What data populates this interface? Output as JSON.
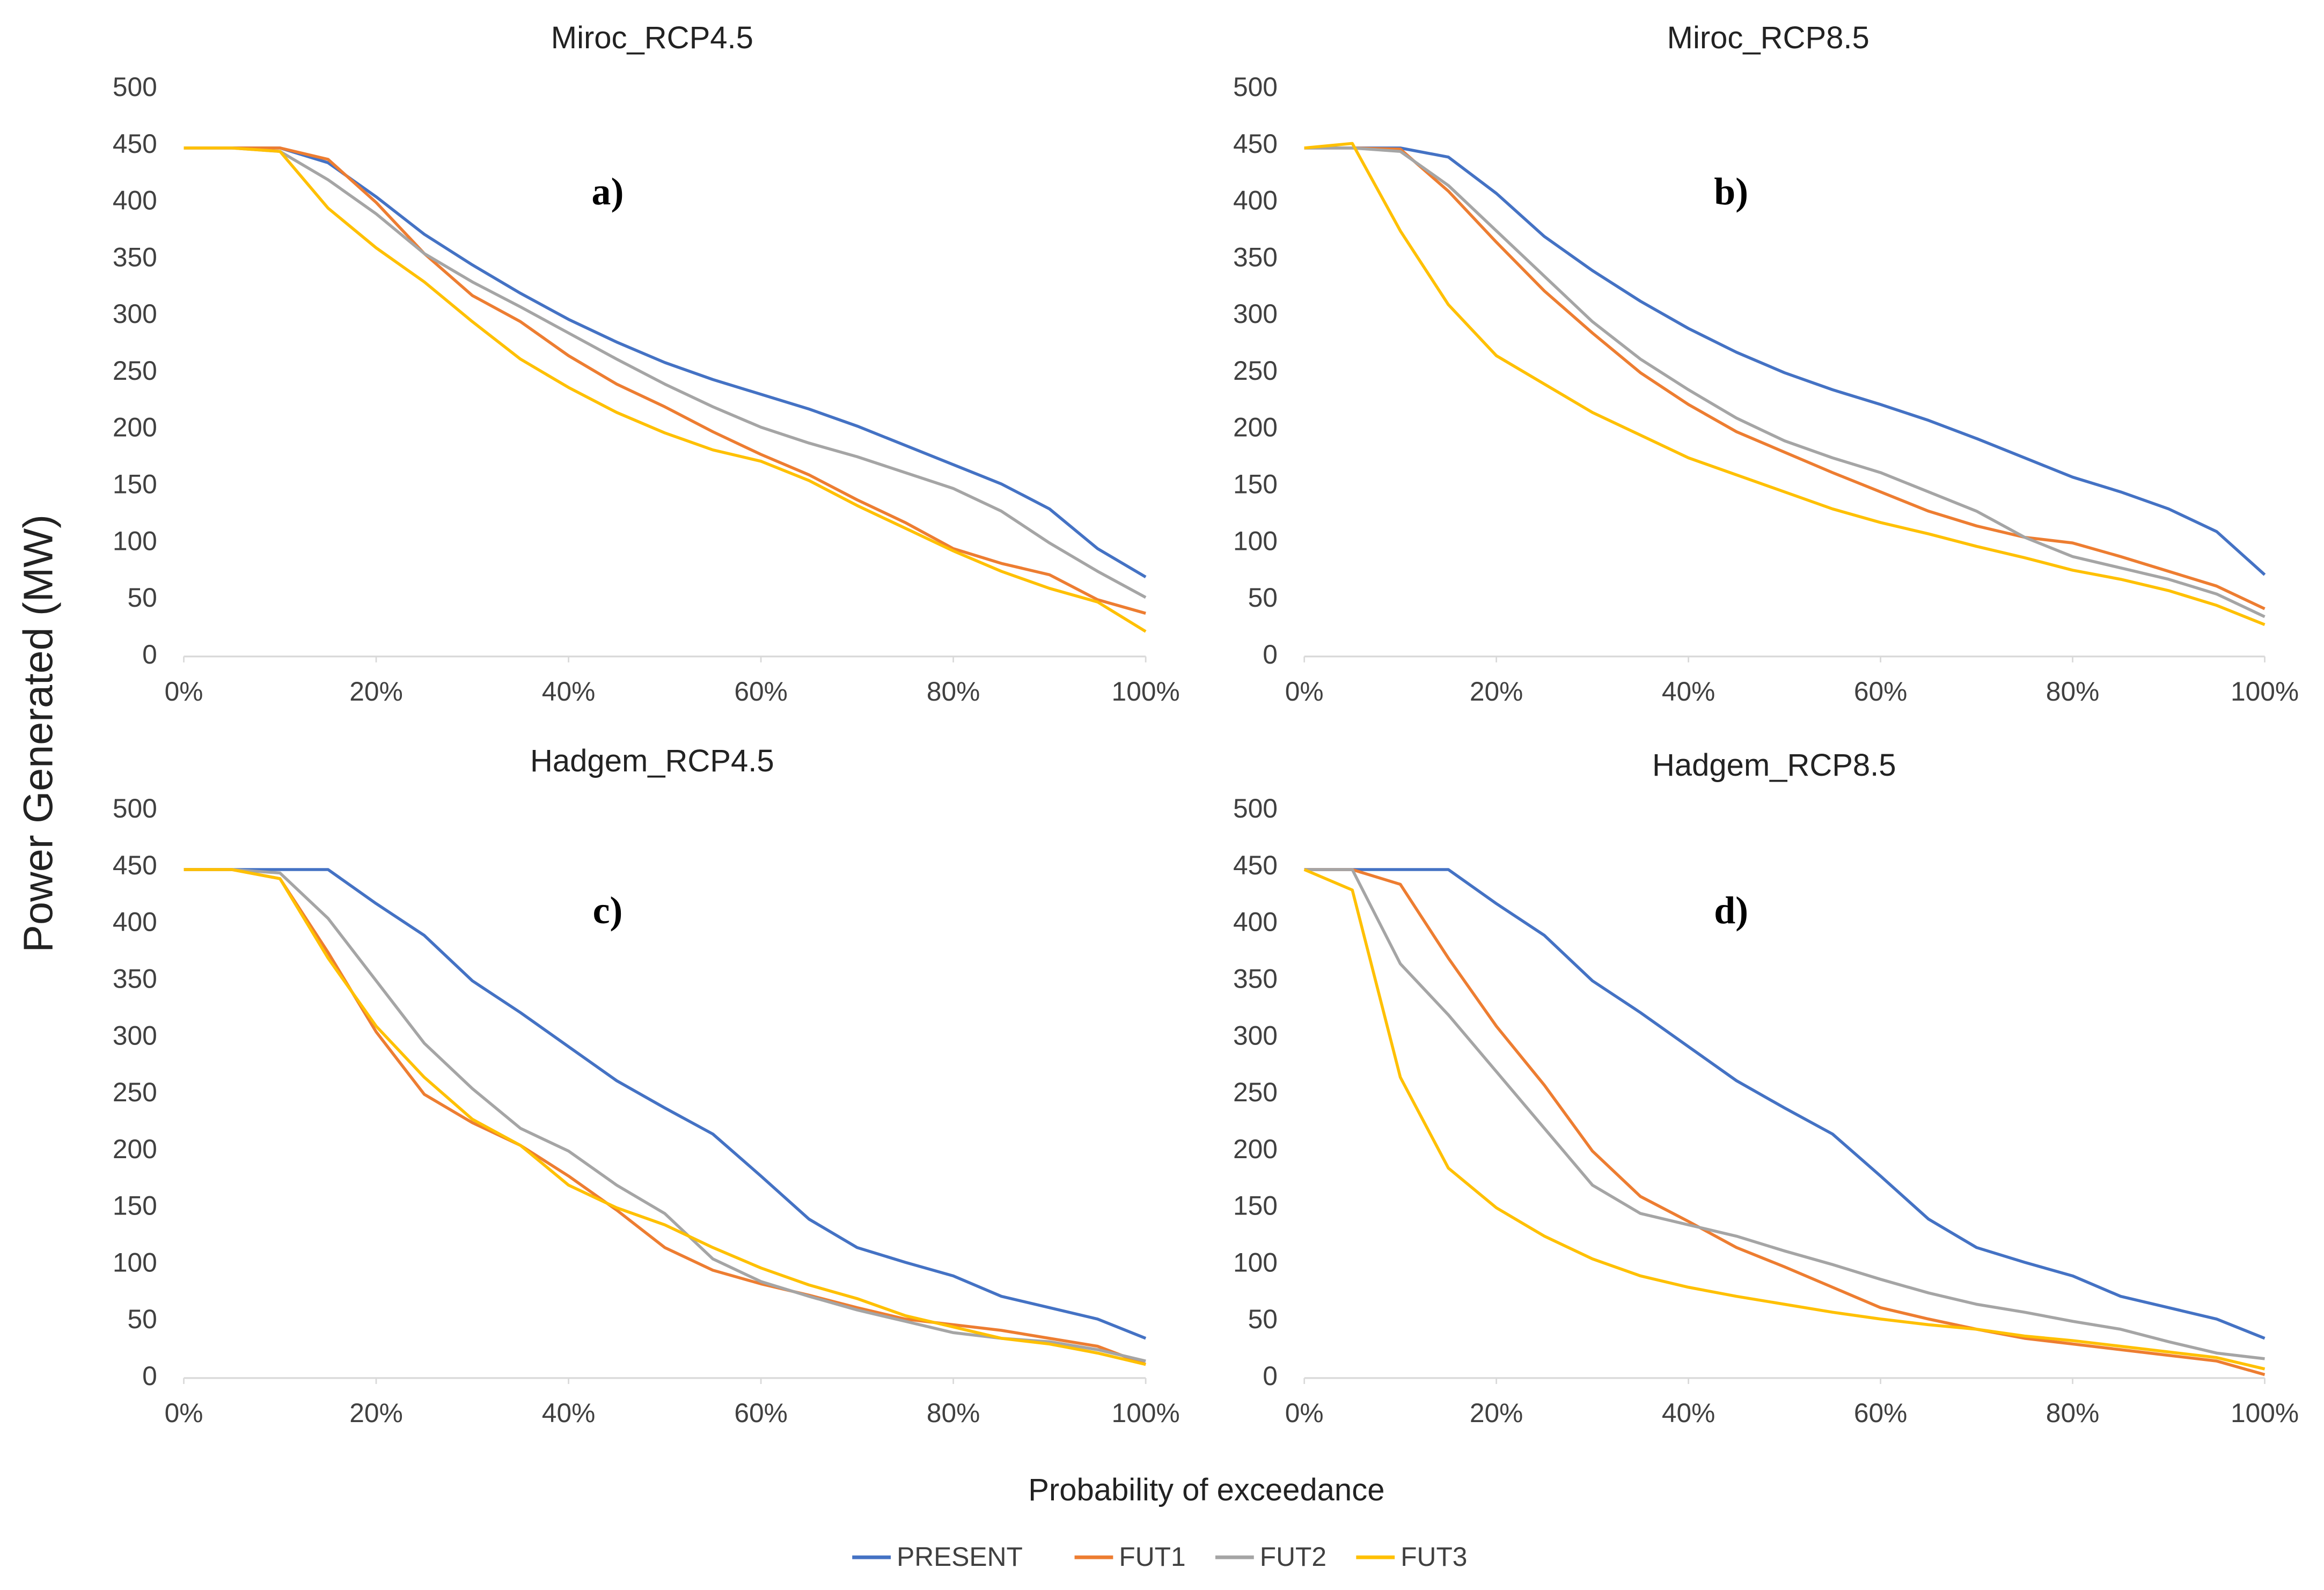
{
  "ylabel": "Power Generated (MW)",
  "xlabel": "Probability of exceedance",
  "chart_data": [
    {
      "type": "line",
      "title": "Miroc_RCP4.5",
      "annotation": "a)",
      "x": [
        0,
        5,
        10,
        15,
        20,
        25,
        30,
        35,
        40,
        45,
        50,
        55,
        60,
        65,
        70,
        75,
        80,
        85,
        90,
        95,
        100
      ],
      "xlim": [
        0,
        100
      ],
      "xticks": [
        {
          "value": 0,
          "label": "0%"
        },
        {
          "value": 20,
          "label": "20%"
        },
        {
          "value": 40,
          "label": "40%"
        },
        {
          "value": 60,
          "label": "60%"
        },
        {
          "value": 80,
          "label": "80%"
        },
        {
          "value": 100,
          "label": "100%"
        }
      ],
      "ylim": [
        0,
        500
      ],
      "yticks": [
        0,
        50,
        100,
        150,
        200,
        250,
        300,
        350,
        400,
        450,
        500
      ],
      "series": [
        {
          "name": "PRESENT",
          "color": "#4472c4",
          "values": [
            448,
            448,
            448,
            435,
            405,
            372,
            345,
            320,
            297,
            277,
            259,
            244,
            231,
            218,
            203,
            186,
            169,
            152,
            130,
            95,
            70
          ]
        },
        {
          "name": "FUT1",
          "color": "#ed7d31",
          "values": [
            448,
            448,
            448,
            438,
            400,
            355,
            318,
            295,
            265,
            240,
            220,
            198,
            178,
            160,
            138,
            118,
            95,
            82,
            72,
            50,
            38
          ]
        },
        {
          "name": "FUT2",
          "color": "#a5a5a5",
          "values": [
            448,
            448,
            445,
            420,
            390,
            355,
            330,
            308,
            285,
            262,
            240,
            220,
            202,
            188,
            176,
            162,
            148,
            128,
            100,
            75,
            52
          ]
        },
        {
          "name": "FUT3",
          "color": "#ffc000",
          "values": [
            448,
            448,
            445,
            395,
            360,
            330,
            295,
            262,
            237,
            215,
            197,
            182,
            172,
            155,
            133,
            113,
            93,
            75,
            60,
            48,
            22
          ]
        }
      ]
    },
    {
      "type": "line",
      "title": "Miroc_RCP8.5",
      "annotation": "b)",
      "x": [
        0,
        5,
        10,
        15,
        20,
        25,
        30,
        35,
        40,
        45,
        50,
        55,
        60,
        65,
        70,
        75,
        80,
        85,
        90,
        95,
        100
      ],
      "xlim": [
        0,
        100
      ],
      "xticks": [
        {
          "value": 0,
          "label": "0%"
        },
        {
          "value": 20,
          "label": "20%"
        },
        {
          "value": 40,
          "label": "40%"
        },
        {
          "value": 60,
          "label": "60%"
        },
        {
          "value": 80,
          "label": "80%"
        },
        {
          "value": 100,
          "label": "100%"
        }
      ],
      "ylim": [
        0,
        500
      ],
      "yticks": [
        0,
        50,
        100,
        150,
        200,
        250,
        300,
        350,
        400,
        450,
        500
      ],
      "series": [
        {
          "name": "PRESENT",
          "color": "#4472c4",
          "values": [
            448,
            448,
            448,
            440,
            408,
            370,
            340,
            313,
            289,
            268,
            250,
            235,
            222,
            208,
            192,
            175,
            158,
            145,
            130,
            110,
            72
          ]
        },
        {
          "name": "FUT1",
          "color": "#ed7d31",
          "values": [
            448,
            448,
            447,
            410,
            365,
            322,
            285,
            250,
            222,
            198,
            180,
            162,
            145,
            128,
            115,
            105,
            100,
            88,
            75,
            62,
            42
          ]
        },
        {
          "name": "FUT2",
          "color": "#a5a5a5",
          "values": [
            448,
            448,
            445,
            415,
            375,
            335,
            295,
            262,
            235,
            210,
            190,
            175,
            162,
            145,
            128,
            105,
            88,
            78,
            68,
            55,
            35
          ]
        },
        {
          "name": "FUT3",
          "color": "#ffc000",
          "values": [
            448,
            452,
            375,
            310,
            265,
            240,
            215,
            195,
            175,
            160,
            145,
            130,
            118,
            108,
            97,
            87,
            76,
            68,
            58,
            45,
            28
          ]
        }
      ]
    },
    {
      "type": "line",
      "title": "Hadgem_RCP4.5",
      "annotation": "c)",
      "x": [
        0,
        5,
        10,
        15,
        20,
        25,
        30,
        35,
        40,
        45,
        50,
        55,
        60,
        65,
        70,
        75,
        80,
        85,
        90,
        95,
        100
      ],
      "xlim": [
        0,
        100
      ],
      "xticks": [
        {
          "value": 0,
          "label": "0%"
        },
        {
          "value": 20,
          "label": "20%"
        },
        {
          "value": 40,
          "label": "40%"
        },
        {
          "value": 60,
          "label": "60%"
        },
        {
          "value": 80,
          "label": "80%"
        },
        {
          "value": 100,
          "label": "100%"
        }
      ],
      "ylim": [
        0,
        500
      ],
      "yticks": [
        0,
        50,
        100,
        150,
        200,
        250,
        300,
        350,
        400,
        450,
        500
      ],
      "series": [
        {
          "name": "PRESENT",
          "color": "#4472c4",
          "values": [
            448,
            448,
            448,
            448,
            418,
            390,
            350,
            322,
            292,
            262,
            238,
            215,
            178,
            140,
            115,
            102,
            90,
            72,
            62,
            52,
            35
          ]
        },
        {
          "name": "FUT1",
          "color": "#ed7d31",
          "values": [
            448,
            448,
            440,
            375,
            305,
            250,
            225,
            205,
            178,
            148,
            115,
            95,
            83,
            73,
            62,
            52,
            47,
            42,
            35,
            28,
            12
          ]
        },
        {
          "name": "FUT2",
          "color": "#a5a5a5",
          "values": [
            448,
            448,
            445,
            405,
            350,
            295,
            255,
            220,
            200,
            170,
            145,
            105,
            85,
            72,
            60,
            50,
            40,
            35,
            32,
            25,
            15
          ]
        },
        {
          "name": "FUT3",
          "color": "#ffc000",
          "values": [
            448,
            448,
            440,
            370,
            310,
            265,
            228,
            205,
            170,
            150,
            135,
            115,
            97,
            82,
            70,
            55,
            45,
            35,
            30,
            22,
            12
          ]
        }
      ]
    },
    {
      "type": "line",
      "title": "Hadgem_RCP8.5",
      "annotation": "d)",
      "x": [
        0,
        5,
        10,
        15,
        20,
        25,
        30,
        35,
        40,
        45,
        50,
        55,
        60,
        65,
        70,
        75,
        80,
        85,
        90,
        95,
        100
      ],
      "xlim": [
        0,
        100
      ],
      "xticks": [
        {
          "value": 0,
          "label": "0%"
        },
        {
          "value": 20,
          "label": "20%"
        },
        {
          "value": 40,
          "label": "40%"
        },
        {
          "value": 60,
          "label": "60%"
        },
        {
          "value": 80,
          "label": "80%"
        },
        {
          "value": 100,
          "label": "100%"
        }
      ],
      "ylim": [
        0,
        500
      ],
      "yticks": [
        0,
        50,
        100,
        150,
        200,
        250,
        300,
        350,
        400,
        450,
        500
      ],
      "series": [
        {
          "name": "PRESENT",
          "color": "#4472c4",
          "values": [
            448,
            448,
            448,
            448,
            418,
            390,
            350,
            322,
            292,
            262,
            238,
            215,
            178,
            140,
            115,
            102,
            90,
            72,
            62,
            52,
            35
          ]
        },
        {
          "name": "FUT1",
          "color": "#ed7d31",
          "values": [
            448,
            448,
            435,
            370,
            310,
            258,
            200,
            160,
            138,
            115,
            98,
            80,
            62,
            52,
            43,
            35,
            30,
            25,
            20,
            15,
            3
          ]
        },
        {
          "name": "FUT2",
          "color": "#a5a5a5",
          "values": [
            448,
            448,
            365,
            320,
            270,
            220,
            170,
            145,
            135,
            125,
            112,
            100,
            87,
            75,
            65,
            58,
            50,
            43,
            32,
            22,
            17
          ]
        },
        {
          "name": "FUT3",
          "color": "#ffc000",
          "values": [
            448,
            430,
            265,
            185,
            150,
            125,
            105,
            90,
            80,
            72,
            65,
            58,
            52,
            47,
            43,
            37,
            33,
            28,
            23,
            18,
            8
          ]
        }
      ]
    }
  ]
}
